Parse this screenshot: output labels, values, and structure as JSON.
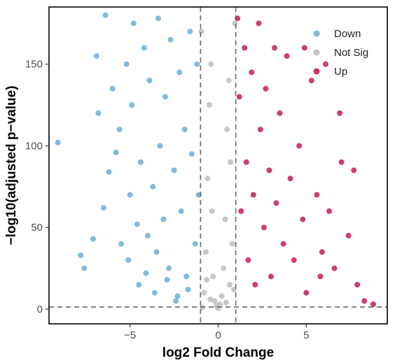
{
  "chart_data": {
    "type": "scatter",
    "title": "",
    "xlabel": "log2 Fold Change",
    "ylabel": "−log10(adjusted p−value)",
    "xlim": [
      -9.6,
      9.6
    ],
    "ylim": [
      -9,
      185
    ],
    "x_ticks": [
      -5,
      0,
      5
    ],
    "x_tick_labels": [
      "−5",
      "0",
      "5"
    ],
    "y_ticks": [
      0,
      50,
      100,
      150
    ],
    "y_tick_labels": [
      "0",
      "50",
      "100",
      "150"
    ],
    "fold_change_thresholds": [
      -1,
      1
    ],
    "pvalue_threshold": 1.3,
    "grid": false,
    "legend_position": "top-right",
    "series": [
      {
        "name": "Down",
        "color": "#6BAED6",
        "points": [
          [
            -9.1,
            102
          ],
          [
            -7.8,
            33
          ],
          [
            -7.6,
            25
          ],
          [
            -7.1,
            43
          ],
          [
            -6.9,
            155
          ],
          [
            -6.4,
            180
          ],
          [
            -6.8,
            120
          ],
          [
            -6.5,
            62
          ],
          [
            -6.2,
            84
          ],
          [
            -6.0,
            135
          ],
          [
            -5.8,
            96
          ],
          [
            -5.5,
            40
          ],
          [
            -5.6,
            110
          ],
          [
            -5.2,
            150
          ],
          [
            -5.0,
            70
          ],
          [
            -5.1,
            30
          ],
          [
            -4.8,
            175
          ],
          [
            -4.6,
            52
          ],
          [
            -4.9,
            125
          ],
          [
            -4.4,
            90
          ],
          [
            -4.5,
            15
          ],
          [
            -4.2,
            160
          ],
          [
            -4.0,
            45
          ],
          [
            -3.9,
            140
          ],
          [
            -3.7,
            75
          ],
          [
            -3.6,
            10
          ],
          [
            -3.4,
            178
          ],
          [
            -3.3,
            100
          ],
          [
            -3.1,
            55
          ],
          [
            -3.0,
            130
          ],
          [
            -2.8,
            25
          ],
          [
            -2.7,
            165
          ],
          [
            -2.5,
            85
          ],
          [
            -2.4,
            5
          ],
          [
            -2.2,
            145
          ],
          [
            -2.1,
            60
          ],
          [
            -1.9,
            110
          ],
          [
            -1.8,
            20
          ],
          [
            -1.6,
            170
          ],
          [
            -1.5,
            95
          ],
          [
            -1.3,
            40
          ],
          [
            -1.2,
            150
          ],
          [
            -1.1,
            70
          ],
          [
            -3.5,
            35
          ],
          [
            -2.9,
            18
          ],
          [
            -2.3,
            8
          ],
          [
            -1.7,
            12
          ],
          [
            -4.1,
            22
          ]
        ]
      },
      {
        "name": "Not Sig",
        "color": "#BDBDBD",
        "points": [
          [
            -0.9,
            1
          ],
          [
            -0.8,
            10
          ],
          [
            -0.7,
            35
          ],
          [
            -0.6,
            80
          ],
          [
            -0.5,
            125
          ],
          [
            -0.4,
            150
          ],
          [
            -0.35,
            60
          ],
          [
            -0.3,
            20
          ],
          [
            -0.2,
            5
          ],
          [
            -0.1,
            2
          ],
          [
            0.0,
            0.5
          ],
          [
            0.1,
            3
          ],
          [
            0.2,
            8
          ],
          [
            0.3,
            25
          ],
          [
            0.4,
            55
          ],
          [
            0.5,
            110
          ],
          [
            0.6,
            140
          ],
          [
            0.7,
            90
          ],
          [
            0.8,
            40
          ],
          [
            0.9,
            12
          ],
          [
            -0.95,
            170
          ],
          [
            0.95,
            175
          ],
          [
            -0.65,
            18
          ],
          [
            0.65,
            15
          ],
          [
            -0.45,
            6
          ],
          [
            0.45,
            4
          ]
        ]
      },
      {
        "name": "Up",
        "color": "#C51B5A",
        "points": [
          [
            1.1,
            178
          ],
          [
            1.2,
            130
          ],
          [
            1.3,
            60
          ],
          [
            1.5,
            160
          ],
          [
            1.6,
            90
          ],
          [
            1.7,
            30
          ],
          [
            1.9,
            145
          ],
          [
            2.0,
            70
          ],
          [
            2.1,
            15
          ],
          [
            2.3,
            175
          ],
          [
            2.4,
            110
          ],
          [
            2.6,
            50
          ],
          [
            2.7,
            135
          ],
          [
            2.9,
            85
          ],
          [
            3.0,
            20
          ],
          [
            3.2,
            160
          ],
          [
            3.3,
            65
          ],
          [
            3.5,
            120
          ],
          [
            3.7,
            40
          ],
          [
            3.9,
            155
          ],
          [
            4.1,
            80
          ],
          [
            4.3,
            30
          ],
          [
            4.6,
            100
          ],
          [
            4.8,
            55
          ],
          [
            5.0,
            10
          ],
          [
            5.3,
            140
          ],
          [
            5.6,
            70
          ],
          [
            5.9,
            35
          ],
          [
            6.1,
            150
          ],
          [
            6.3,
            60
          ],
          [
            6.6,
            25
          ],
          [
            7.0,
            90
          ],
          [
            7.4,
            45
          ],
          [
            7.7,
            85
          ],
          [
            7.9,
            15
          ],
          [
            8.3,
            5
          ],
          [
            8.8,
            3
          ],
          [
            6.9,
            120
          ],
          [
            5.8,
            20
          ],
          [
            4.9,
            160
          ]
        ]
      }
    ]
  }
}
